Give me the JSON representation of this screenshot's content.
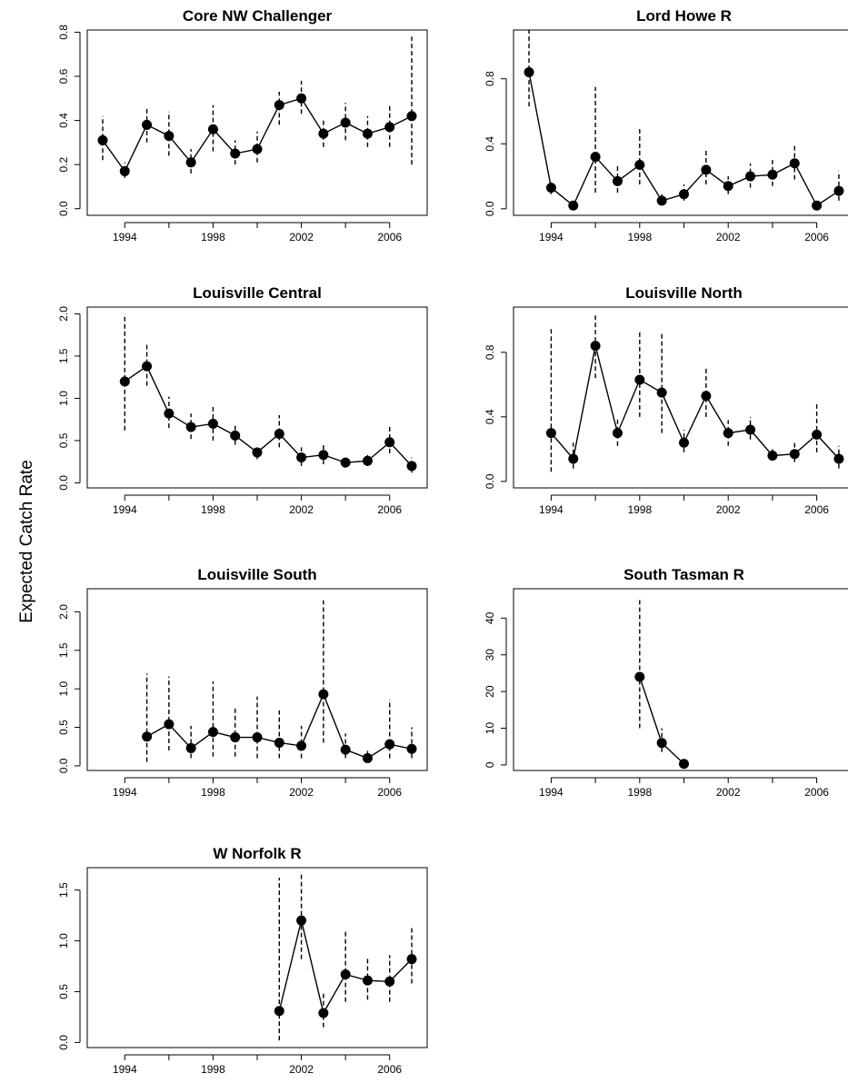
{
  "ylabel": "Expected Catch Rate",
  "chart_data": [
    {
      "type": "line",
      "title": "Core NW Challenger",
      "color": "#000000",
      "x": [
        1993,
        1994,
        1995,
        1996,
        1997,
        1998,
        1999,
        2000,
        2001,
        2002,
        2003,
        2004,
        2005,
        2006,
        2007
      ],
      "values": [
        0.31,
        0.17,
        0.38,
        0.33,
        0.21,
        0.36,
        0.25,
        0.27,
        0.47,
        0.5,
        0.34,
        0.39,
        0.34,
        0.37,
        0.42
      ],
      "lower": [
        0.22,
        0.14,
        0.3,
        0.24,
        0.16,
        0.26,
        0.2,
        0.21,
        0.38,
        0.43,
        0.28,
        0.31,
        0.28,
        0.28,
        0.2
      ],
      "upper": [
        0.42,
        0.21,
        0.46,
        0.44,
        0.27,
        0.47,
        0.31,
        0.35,
        0.53,
        0.58,
        0.41,
        0.48,
        0.42,
        0.47,
        0.78
      ],
      "xlim": [
        1992.3,
        2007.7
      ],
      "xticks": [
        1994,
        1998,
        2002,
        2006
      ],
      "xminorticks": [
        1996,
        2000,
        2004
      ],
      "ylim": [
        -0.03,
        0.81
      ],
      "yticks": [
        {
          "value": 0,
          "label": "0.0"
        },
        {
          "value": 0.2,
          "label": "0.2"
        },
        {
          "value": 0.4,
          "label": "0.4"
        },
        {
          "value": 0.6,
          "label": "0.6"
        },
        {
          "value": 0.8,
          "label": "0.8"
        }
      ]
    },
    {
      "type": "line",
      "title": "Lord Howe R",
      "color": "#000000",
      "x": [
        1993,
        1994,
        1995,
        1996,
        1997,
        1998,
        1999,
        2000,
        2001,
        2002,
        2003,
        2004,
        2005,
        2006,
        2007
      ],
      "values": [
        0.84,
        0.13,
        0.02,
        0.32,
        0.17,
        0.27,
        0.05,
        0.09,
        0.24,
        0.14,
        0.2,
        0.21,
        0.28,
        0.02,
        0.11
      ],
      "lower": [
        0.63,
        0.09,
        0.01,
        0.1,
        0.1,
        0.15,
        0.03,
        0.05,
        0.15,
        0.09,
        0.13,
        0.14,
        0.18,
        0.01,
        0.05
      ],
      "upper": [
        1.1,
        0.17,
        0.04,
        0.75,
        0.27,
        0.5,
        0.09,
        0.15,
        0.37,
        0.2,
        0.28,
        0.3,
        0.4,
        0.04,
        0.23
      ],
      "xlim": [
        1992.3,
        2007.7
      ],
      "xticks": [
        1994,
        1998,
        2002,
        2006
      ],
      "xminorticks": [
        1996,
        2000,
        2004
      ],
      "ylim": [
        -0.04,
        1.1
      ],
      "yticks": [
        {
          "value": 0,
          "label": "0.0"
        },
        {
          "value": 0.4,
          "label": "0.4"
        },
        {
          "value": 0.8,
          "label": "0.8"
        }
      ]
    },
    {
      "type": "line",
      "title": "Louisville Central",
      "color": "#000000",
      "x": [
        1994,
        1995,
        1996,
        1997,
        1998,
        1999,
        2000,
        2001,
        2002,
        2003,
        2004,
        2005,
        2006,
        2007
      ],
      "values": [
        1.2,
        1.38,
        0.82,
        0.66,
        0.7,
        0.56,
        0.36,
        0.58,
        0.3,
        0.33,
        0.24,
        0.26,
        0.48,
        0.2
      ],
      "lower": [
        0.62,
        1.15,
        0.65,
        0.52,
        0.5,
        0.45,
        0.28,
        0.42,
        0.2,
        0.22,
        0.18,
        0.2,
        0.35,
        0.12
      ],
      "upper": [
        2.0,
        1.65,
        1.02,
        0.82,
        0.93,
        0.7,
        0.45,
        0.8,
        0.42,
        0.45,
        0.3,
        0.33,
        0.68,
        0.3
      ],
      "xlim": [
        1992.3,
        2007.7
      ],
      "xticks": [
        1994,
        1998,
        2002,
        2006
      ],
      "xminorticks": [
        1996,
        2000,
        2004
      ],
      "ylim": [
        -0.06,
        2.08
      ],
      "yticks": [
        {
          "value": 0,
          "label": "0.0"
        },
        {
          "value": 0.5,
          "label": "0.5"
        },
        {
          "value": 1,
          "label": "1.0"
        },
        {
          "value": 1.5,
          "label": "1.5"
        },
        {
          "value": 2,
          "label": "2.0"
        }
      ]
    },
    {
      "type": "line",
      "title": "Louisville North",
      "color": "#000000",
      "x": [
        1994,
        1995,
        1996,
        1997,
        1998,
        1999,
        2000,
        2001,
        2002,
        2003,
        2004,
        2005,
        2006,
        2007
      ],
      "values": [
        0.3,
        0.14,
        0.84,
        0.3,
        0.63,
        0.55,
        0.24,
        0.53,
        0.3,
        0.32,
        0.16,
        0.17,
        0.29,
        0.14
      ],
      "lower": [
        0.06,
        0.08,
        0.64,
        0.22,
        0.4,
        0.3,
        0.18,
        0.4,
        0.22,
        0.26,
        0.13,
        0.12,
        0.18,
        0.08
      ],
      "upper": [
        0.96,
        0.24,
        1.04,
        0.4,
        0.94,
        0.93,
        0.32,
        0.7,
        0.38,
        0.4,
        0.2,
        0.24,
        0.48,
        0.22
      ],
      "xlim": [
        1992.3,
        2007.7
      ],
      "xticks": [
        1994,
        1998,
        2002,
        2006
      ],
      "xminorticks": [
        1996,
        2000,
        2004
      ],
      "ylim": [
        -0.04,
        1.08
      ],
      "yticks": [
        {
          "value": 0,
          "label": "0.0"
        },
        {
          "value": 0.4,
          "label": "0.4"
        },
        {
          "value": 0.8,
          "label": "0.8"
        }
      ]
    },
    {
      "type": "line",
      "title": "Louisville South",
      "color": "#000000",
      "x": [
        1995,
        1996,
        1997,
        1998,
        1999,
        2000,
        2001,
        2002,
        2003,
        2004,
        2005,
        2006,
        2007
      ],
      "values": [
        0.38,
        0.54,
        0.23,
        0.44,
        0.37,
        0.37,
        0.3,
        0.26,
        0.93,
        0.21,
        0.1,
        0.28,
        0.22
      ],
      "lower": [
        0.05,
        0.2,
        0.1,
        0.12,
        0.12,
        0.1,
        0.1,
        0.1,
        0.3,
        0.1,
        0.04,
        0.1,
        0.1
      ],
      "upper": [
        1.2,
        1.16,
        0.52,
        1.1,
        0.75,
        0.9,
        0.72,
        0.52,
        2.15,
        0.42,
        0.22,
        0.86,
        0.5
      ],
      "xlim": [
        1992.3,
        2007.7
      ],
      "xticks": [
        1994,
        1998,
        2002,
        2006
      ],
      "xminorticks": [
        1996,
        2000,
        2004
      ],
      "ylim": [
        -0.06,
        2.3
      ],
      "yticks": [
        {
          "value": 0,
          "label": "0.0"
        },
        {
          "value": 0.5,
          "label": "0.5"
        },
        {
          "value": 1,
          "label": "1.0"
        },
        {
          "value": 1.5,
          "label": "1.5"
        },
        {
          "value": 2,
          "label": "2.0"
        }
      ]
    },
    {
      "type": "line",
      "title": "South Tasman R",
      "color": "#000000",
      "x": [
        1998,
        1999,
        2000
      ],
      "values": [
        24,
        6,
        0.3
      ],
      "lower": [
        10,
        3.5,
        0.1
      ],
      "upper": [
        45,
        10,
        0.8
      ],
      "xlim": [
        1992.3,
        2007.7
      ],
      "xticks": [
        1994,
        1998,
        2002,
        2006
      ],
      "xminorticks": [
        1996,
        2000,
        2004
      ],
      "ylim": [
        -1.5,
        48
      ],
      "yticks": [
        0,
        10,
        20,
        30,
        40
      ]
    },
    {
      "type": "line",
      "title": "W Norfolk R",
      "color": "#000000",
      "x": [
        2001,
        2002,
        2003,
        2004,
        2005,
        2006,
        2007
      ],
      "values": [
        0.31,
        1.2,
        0.29,
        0.67,
        0.61,
        0.6,
        0.82
      ],
      "lower": [
        0.02,
        0.82,
        0.15,
        0.4,
        0.42,
        0.4,
        0.58
      ],
      "upper": [
        1.62,
        1.68,
        0.5,
        1.1,
        0.85,
        0.86,
        1.14
      ],
      "xlim": [
        1992.3,
        2007.7
      ],
      "xticks": [
        1994,
        1998,
        2002,
        2006
      ],
      "xminorticks": [
        1996,
        2000,
        2004
      ],
      "ylim": [
        -0.05,
        1.72
      ],
      "yticks": [
        {
          "value": 0,
          "label": "0.0"
        },
        {
          "value": 0.5,
          "label": "0.5"
        },
        {
          "value": 1,
          "label": "1.0"
        },
        {
          "value": 1.5,
          "label": "1.5"
        }
      ]
    }
  ]
}
